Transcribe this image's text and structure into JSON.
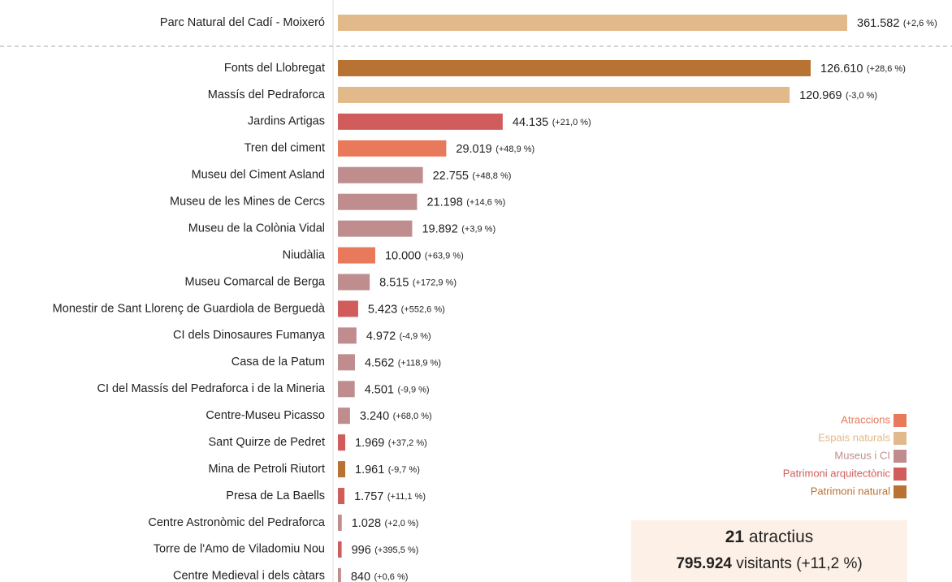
{
  "chart_data": {
    "type": "bar",
    "categories": [
      "Parc Natural del Cadí - Moixeró",
      "Fonts del Llobregat",
      "Massís del Pedraforca",
      "Jardins Artigas",
      "Tren del ciment",
      "Museu del Ciment Asland",
      "Museu de les Mines de Cercs",
      "Museu de la Colònia Vidal",
      "Niudàlia",
      "Museu Comarcal de Berga",
      "Monestir de Sant Llorenç de Guardiola de Berguedà",
      "CI dels Dinosaures Fumanya",
      "Casa de la Patum",
      "CI del Massís del Pedraforca i de la Mineria",
      "Centre-Museu Picasso",
      "Sant Quirze de Pedret",
      "Mina de Petroli Riutort",
      "Presa de La Baells",
      "Centre Astronòmic del Pedraforca",
      "Torre de l'Amo de Viladomiu Nou",
      "Centre Medieval i dels càtars"
    ],
    "values": [
      361582,
      126610,
      120969,
      44135,
      29019,
      22755,
      21198,
      19892,
      10000,
      8515,
      5423,
      4972,
      4562,
      4501,
      3240,
      1969,
      1961,
      1757,
      1028,
      996,
      840
    ],
    "value_labels": [
      "361.582",
      "126.610",
      "120.969",
      "44.135",
      "29.019",
      "22.755",
      "21.198",
      "19.892",
      "10.000",
      "8.515",
      "5.423",
      "4.972",
      "4.562",
      "4.501",
      "3.240",
      "1.969",
      "1.961",
      "1.757",
      "1.028",
      "996",
      "840"
    ],
    "change_labels": [
      "(+2,6 %)",
      "(+28,6 %)",
      "(-3,0 %)",
      "(+21,0 %)",
      "(+48,9 %)",
      "(+48,8 %)",
      "(+14,6 %)",
      "(+3,9 %)",
      "(+63,9 %)",
      "(+172,9 %)",
      "(+552,6 %)",
      "(-4,9 %)",
      "(+118,9 %)",
      "(-9,9 %)",
      "(+68,0 %)",
      "(+37,2 %)",
      "(-9,7 %)",
      "(+11,1 %)",
      "(+2,0 %)",
      "(+395,5 %)",
      "(+0,6 %)"
    ],
    "colors": [
      "#e2b98a",
      "#b87333",
      "#e2b98a",
      "#d05c5c",
      "#e8795a",
      "#bf8d8d",
      "#bf8d8d",
      "#bf8d8d",
      "#e8795a",
      "#bf8d8d",
      "#d05c5c",
      "#bf8d8d",
      "#bf8d8d",
      "#bf8d8d",
      "#bf8d8d",
      "#d05c5c",
      "#b87333",
      "#d05c5c",
      "#bf8d8d",
      "#d05c5c",
      "#bf8d8d"
    ],
    "legend": [
      {
        "name": "Atraccions",
        "color": "#e8795a"
      },
      {
        "name": "Espais naturals",
        "color": "#e2b98a"
      },
      {
        "name": "Museus i CI",
        "color": "#bf8d8d"
      },
      {
        "name": "Patrimoni arquitectònic",
        "color": "#d05c5c"
      },
      {
        "name": "Patrimoni natural",
        "color": "#b87333"
      }
    ],
    "summary": {
      "count": 21,
      "count_text": "atractius",
      "total": "795.924",
      "total_text": "visitants (+11,2 %)"
    }
  }
}
